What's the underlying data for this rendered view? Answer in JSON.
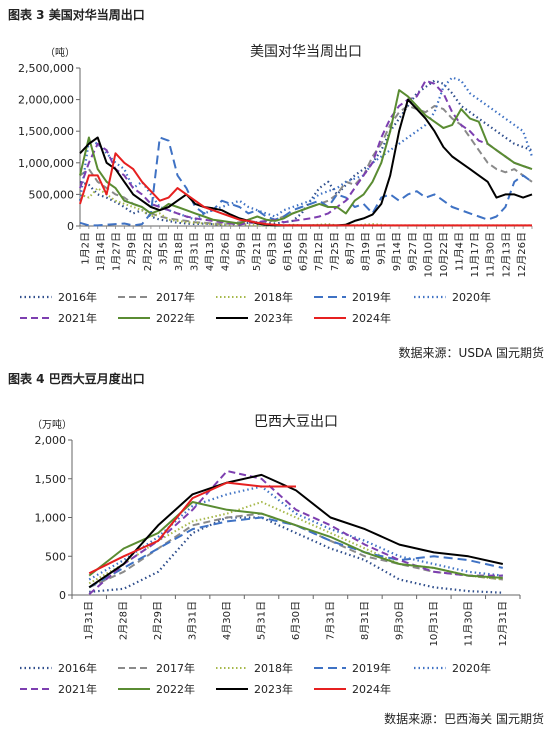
{
  "charts_meta": [
    {
      "fig_label": "图表 3 美国对华当周出口",
      "source": "数据来源：USDA 国元期货"
    },
    {
      "fig_label": "图表 4 巴西大豆月度出口",
      "source": "数据来源：巴西海关 国元期货"
    }
  ],
  "colors": {
    "2016年": "#2F4E8C",
    "2017年": "#8A8A8A",
    "2018年": "#A6B84A",
    "2019年": "#3F72C4",
    "2020年": "#3F72C4",
    "2021年": "#7D3FB0",
    "2022年": "#5A8C32",
    "2023年": "#000000",
    "2024年": "#E62020"
  },
  "chart_data": [
    {
      "type": "line",
      "title": "美国对华当周出口",
      "ylabel": "（吨）",
      "xlabel": "",
      "ylim": [
        0,
        2500000
      ],
      "yticks": [
        0,
        500000,
        1000000,
        1500000,
        2000000,
        2500000
      ],
      "ytick_labels": [
        "0",
        "500,000",
        "1,000,000",
        "1,500,000",
        "2,000,000",
        "2,500,000"
      ],
      "tick_labels": [
        "1月2日",
        "1月14日",
        "1月27日",
        "2月9日",
        "2月22日",
        "3月5日",
        "3月18日",
        "3月31日",
        "4月13日",
        "4月26日",
        "5月9日",
        "5月21日",
        "6月3日",
        "6月16日",
        "6月29日",
        "7月12日",
        "7月25日",
        "8月7日",
        "8月19日",
        "9月1日",
        "9月14日",
        "9月27日",
        "10月10日",
        "10月22日",
        "11月4日",
        "11月17日",
        "11月30日",
        "12月13日",
        "12月26日"
      ],
      "x_count": 52,
      "legend": "bottom",
      "series": [
        {
          "name": "2016年",
          "values": [
            700000,
            650000,
            500000,
            450000,
            380000,
            300000,
            200000,
            250000,
            150000,
            100000,
            80000,
            50000,
            40000,
            30000,
            40000,
            30000,
            20000,
            30000,
            40000,
            50000,
            60000,
            50000,
            40000,
            60000,
            80000,
            200000,
            400000,
            600000,
            700000,
            500000,
            650000,
            800000,
            900000,
            1000000,
            1200000,
            1500000,
            1700000,
            1900000,
            2100000,
            2200000,
            2300000,
            2250000,
            2100000,
            1900000,
            1800000,
            1700000,
            1600000,
            1500000,
            1400000,
            1300000,
            1250000,
            1200000
          ]
        },
        {
          "name": "2017年",
          "values": [
            800000,
            900000,
            700000,
            600000,
            500000,
            450000,
            350000,
            300000,
            200000,
            150000,
            120000,
            100000,
            80000,
            60000,
            50000,
            40000,
            30000,
            40000,
            60000,
            80000,
            60000,
            50000,
            100000,
            150000,
            200000,
            250000,
            300000,
            350000,
            400000,
            500000,
            700000,
            650000,
            800000,
            1100000,
            1300000,
            1600000,
            1800000,
            1900000,
            1850000,
            1800000,
            1900000,
            1850000,
            1700000,
            1600000,
            1400000,
            1200000,
            1000000,
            900000,
            850000,
            900000,
            800000,
            700000
          ]
        },
        {
          "name": "2018年",
          "values": [
            500000,
            450000,
            600000,
            500000,
            400000,
            350000,
            300000,
            250000,
            150000,
            200000,
            100000,
            80000,
            60000,
            50000,
            40000,
            30000,
            20000,
            20000,
            30000,
            20000,
            10000,
            10000,
            10000,
            10000,
            20000,
            10000,
            10000,
            20000,
            30000,
            10000,
            20000,
            10000,
            20000,
            30000,
            20000,
            10000,
            10000,
            10000,
            10000,
            10000,
            10000,
            10000,
            10000,
            10000,
            10000,
            10000,
            10000,
            10000,
            10000,
            10000,
            10000,
            10000
          ]
        },
        {
          "name": "2019年",
          "values": [
            50000,
            10000,
            10000,
            20000,
            30000,
            40000,
            10000,
            30000,
            200000,
            1400000,
            1350000,
            800000,
            600000,
            300000,
            200000,
            250000,
            400000,
            350000,
            300000,
            200000,
            250000,
            150000,
            100000,
            150000,
            250000,
            300000,
            350000,
            400000,
            300000,
            500000,
            450000,
            300000,
            350000,
            200000,
            450000,
            500000,
            400000,
            500000,
            550000,
            450000,
            500000,
            400000,
            300000,
            250000,
            200000,
            150000,
            100000,
            150000,
            300000,
            700000,
            800000,
            700000
          ]
        },
        {
          "name": "2020年",
          "values": [
            400000,
            1350000,
            1300000,
            1150000,
            1000000,
            900000,
            600000,
            700000,
            500000,
            300000,
            250000,
            200000,
            150000,
            100000,
            200000,
            250000,
            300000,
            350000,
            400000,
            300000,
            250000,
            200000,
            150000,
            250000,
            300000,
            350000,
            400000,
            500000,
            550000,
            600000,
            700000,
            750000,
            800000,
            1000000,
            1100000,
            1200000,
            1300000,
            1400000,
            1500000,
            1600000,
            1800000,
            2200000,
            2350000,
            2300000,
            2100000,
            2000000,
            1900000,
            1800000,
            1700000,
            1600000,
            1500000,
            1100000
          ]
        },
        {
          "name": "2021年",
          "values": [
            600000,
            1000000,
            1300000,
            1200000,
            900000,
            800000,
            600000,
            500000,
            350000,
            300000,
            250000,
            200000,
            150000,
            120000,
            100000,
            80000,
            60000,
            40000,
            20000,
            50000,
            60000,
            80000,
            100000,
            60000,
            80000,
            100000,
            120000,
            150000,
            200000,
            300000,
            400000,
            600000,
            800000,
            1000000,
            1400000,
            1700000,
            1900000,
            2000000,
            2050000,
            2300000,
            2250000,
            2100000,
            1800000,
            1600000,
            1500000,
            1350000,
            1300000,
            1200000,
            1100000,
            1000000,
            950000,
            900000
          ]
        },
        {
          "name": "2022年",
          "values": [
            800000,
            1400000,
            900000,
            700000,
            600000,
            400000,
            350000,
            300000,
            200000,
            250000,
            350000,
            300000,
            250000,
            200000,
            150000,
            100000,
            80000,
            60000,
            40000,
            100000,
            150000,
            100000,
            80000,
            120000,
            200000,
            250000,
            300000,
            350000,
            300000,
            300000,
            200000,
            400000,
            500000,
            700000,
            1000000,
            1500000,
            2150000,
            2050000,
            1900000,
            1750000,
            1650000,
            1550000,
            1600000,
            1850000,
            1700000,
            1650000,
            1300000,
            1200000,
            1100000,
            1000000,
            950000,
            900000
          ]
        },
        {
          "name": "2023年",
          "values": [
            1150000,
            1300000,
            1400000,
            1000000,
            900000,
            700000,
            500000,
            400000,
            300000,
            250000,
            300000,
            400000,
            500000,
            350000,
            300000,
            280000,
            250000,
            180000,
            120000,
            80000,
            40000,
            20000,
            10000,
            10000,
            10000,
            10000,
            10000,
            10000,
            10000,
            10000,
            20000,
            80000,
            120000,
            180000,
            350000,
            800000,
            1500000,
            2000000,
            1850000,
            1700000,
            1500000,
            1250000,
            1100000,
            1000000,
            900000,
            800000,
            700000,
            450000,
            500000,
            500000,
            450000,
            500000
          ]
        },
        {
          "name": "2024年",
          "values": [
            350000,
            800000,
            800000,
            500000,
            1150000,
            1000000,
            900000,
            700000,
            550000,
            400000,
            450000,
            600000,
            500000,
            400000,
            300000,
            250000,
            200000,
            150000,
            100000,
            80000,
            50000,
            30000,
            20000,
            10000,
            10000,
            10000,
            10000,
            10000,
            10000,
            10000,
            10000,
            10000,
            10000,
            10000,
            10000,
            10000,
            10000,
            10000,
            10000,
            10000,
            10000,
            10000,
            10000,
            10000,
            10000,
            10000,
            10000,
            10000,
            10000,
            10000,
            10000,
            10000
          ]
        }
      ]
    },
    {
      "type": "line",
      "title": "巴西大豆出口",
      "ylabel": "（万吨）",
      "xlabel": "",
      "ylim": [
        0,
        2000
      ],
      "yticks": [
        0,
        500,
        1000,
        1500,
        2000
      ],
      "ytick_labels": [
        "0",
        "500",
        "1,000",
        "1,500",
        "2,000"
      ],
      "categories": [
        "1月31日",
        "2月28日",
        "2月29日",
        "3月31日",
        "4月30日",
        "5月31日",
        "6月30日",
        "7月31日",
        "8月31日",
        "9月30日",
        "10月31日",
        "11月30日",
        "12月31日"
      ],
      "legend": "bottom",
      "series": [
        {
          "name": "2016年",
          "values": [
            40,
            80,
            300,
            800,
            1000,
            1000,
            800,
            600,
            450,
            200,
            100,
            50,
            30
          ]
        },
        {
          "name": "2017年",
          "values": [
            100,
            300,
            600,
            900,
            1000,
            1050,
            900,
            700,
            500,
            400,
            300,
            250,
            200
          ]
        },
        {
          "name": "2018年",
          "values": [
            150,
            400,
            700,
            950,
            1050,
            1200,
            1000,
            800,
            600,
            400,
            350,
            250,
            200
          ]
        },
        {
          "name": "2019年",
          "values": [
            100,
            350,
            600,
            850,
            950,
            1000,
            900,
            700,
            550,
            450,
            500,
            450,
            350
          ]
        },
        {
          "name": "2020年",
          "values": [
            200,
            450,
            750,
            1150,
            1300,
            1400,
            1050,
            850,
            700,
            500,
            400,
            300,
            250
          ]
        },
        {
          "name": "2021年",
          "values": [
            10,
            400,
            700,
            1100,
            1600,
            1500,
            1100,
            900,
            650,
            450,
            300,
            250,
            250
          ]
        },
        {
          "name": "2022年",
          "values": [
            250,
            600,
            800,
            1200,
            1100,
            1050,
            900,
            750,
            550,
            400,
            350,
            250,
            220
          ]
        },
        {
          "name": "2023年",
          "values": [
            100,
            400,
            900,
            1300,
            1450,
            1550,
            1350,
            1000,
            850,
            650,
            550,
            500,
            400
          ]
        },
        {
          "name": "2024年",
          "values": [
            280,
            500,
            700,
            1250,
            1450,
            1400,
            1400,
            null,
            null,
            null,
            null,
            null,
            null
          ]
        }
      ]
    }
  ]
}
